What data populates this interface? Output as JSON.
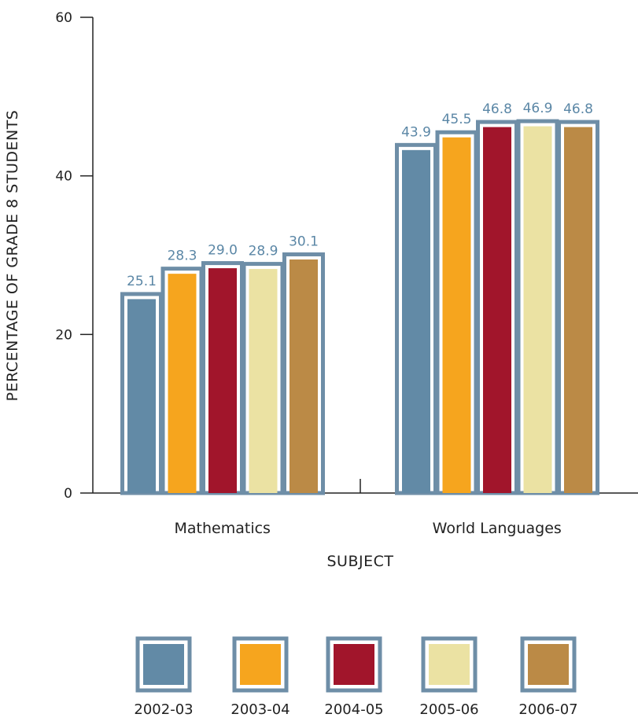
{
  "chart_data": {
    "type": "bar",
    "categories": [
      "Mathematics",
      "World Languages"
    ],
    "series": [
      {
        "name": "2002-03",
        "values": [
          25.1,
          43.9
        ]
      },
      {
        "name": "2003-04",
        "values": [
          28.3,
          45.5
        ]
      },
      {
        "name": "2004-05",
        "values": [
          29.0,
          46.8
        ]
      },
      {
        "name": "2005-06",
        "values": [
          28.9,
          46.9
        ]
      },
      {
        "name": "2006-07",
        "values": [
          30.1,
          46.8
        ]
      }
    ],
    "data_labels": [
      [
        "25.1",
        "43.9"
      ],
      [
        "28.3",
        "45.5"
      ],
      [
        "29.0",
        "46.8"
      ],
      [
        "28.9",
        "46.9"
      ],
      [
        "30.1",
        "46.8"
      ]
    ],
    "xlabel": "SUBJECT",
    "ylabel": "PERCENTAGE OF GRADE 8 STUDENTS",
    "ylim": [
      0,
      60
    ],
    "yticks": [
      "0",
      "20",
      "40",
      "60"
    ],
    "ytick_values": [
      0,
      20,
      40,
      60
    ],
    "colors": [
      "#628aa6",
      "#f6a51e",
      "#a1152b",
      "#ebe2a3",
      "#bb8a46"
    ],
    "outline_color": "#6e8ea7",
    "data_label_color": "#5b87a6",
    "grid": false,
    "legend_position": "bottom"
  }
}
